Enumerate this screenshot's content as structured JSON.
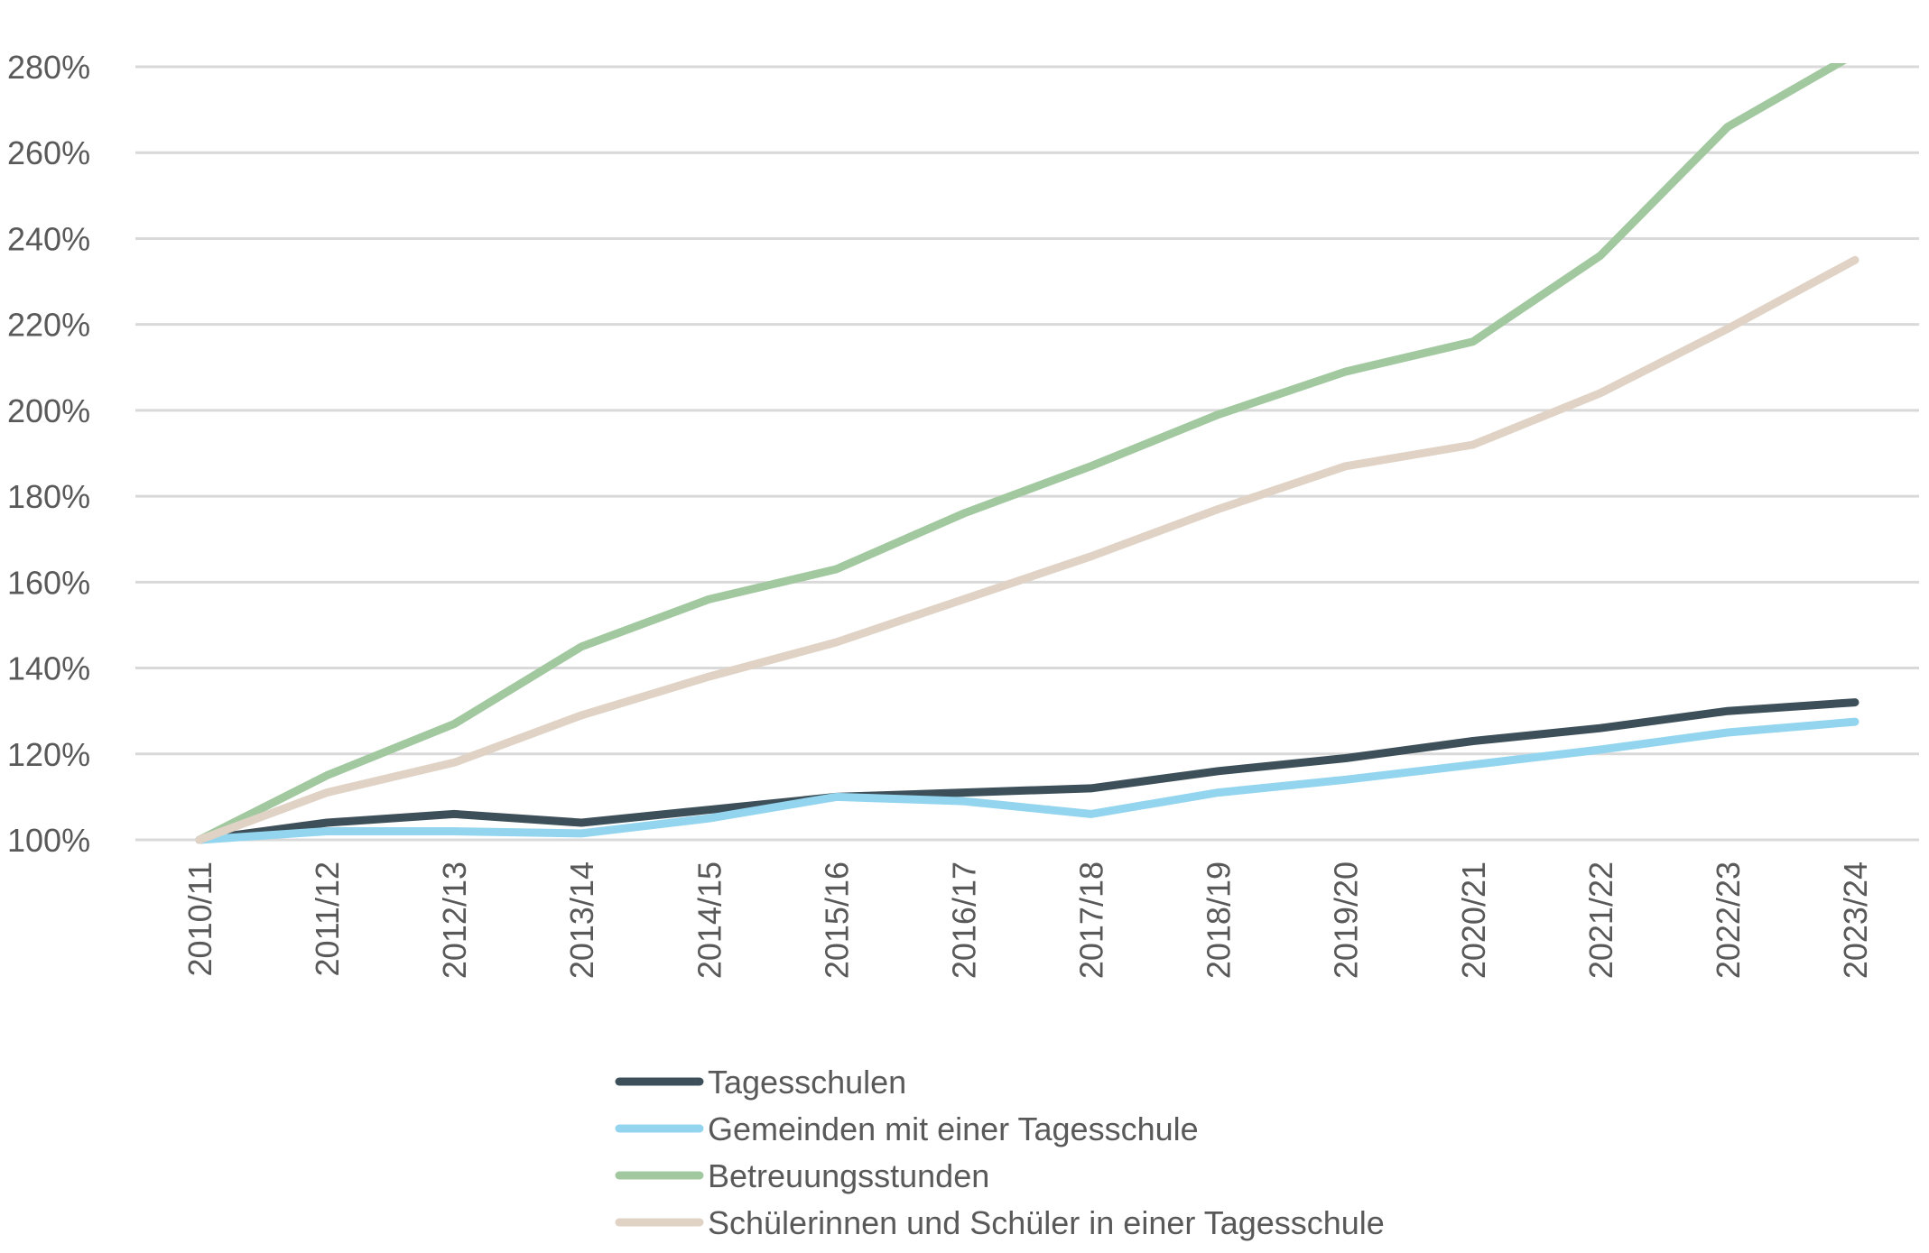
{
  "chart_data": {
    "type": "line",
    "title": "",
    "xlabel": "",
    "ylabel": "",
    "categories": [
      "2010/11",
      "2011/12",
      "2012/13",
      "2013/14",
      "2014/15",
      "2015/16",
      "2016/17",
      "2017/18",
      "2018/19",
      "2019/20",
      "2020/21",
      "2021/22",
      "2022/23",
      "2023/24"
    ],
    "ylim": [
      100,
      280
    ],
    "yticks": [
      100,
      120,
      140,
      160,
      180,
      200,
      220,
      240,
      260,
      280
    ],
    "ytick_format": "%",
    "grid": true,
    "legend_position": "bottom",
    "series": [
      {
        "name": "Tagesschulen",
        "color": "#3d4f58",
        "values": [
          100,
          104,
          106,
          104,
          107,
          110,
          111,
          112,
          116,
          119,
          123,
          126,
          130,
          132
        ]
      },
      {
        "name": "Gemeinden mit einer Tagesschule",
        "color": "#93d5ee",
        "values": [
          100,
          102,
          102,
          101.5,
          105,
          110,
          109,
          106,
          111,
          114,
          117.5,
          121,
          125,
          127.5
        ]
      },
      {
        "name": "Betreuungsstunden",
        "color": "#a1c89f",
        "values": [
          100,
          115,
          127,
          145,
          156,
          163,
          176,
          187,
          199,
          209,
          216,
          236,
          266,
          283
        ]
      },
      {
        "name": "Schülerinnen und Schüler in einer Tagesschule",
        "color": "#e0d3c6",
        "values": [
          100,
          111,
          118,
          129,
          138,
          146,
          156,
          166,
          177,
          187,
          192,
          204,
          219,
          235
        ]
      }
    ]
  }
}
